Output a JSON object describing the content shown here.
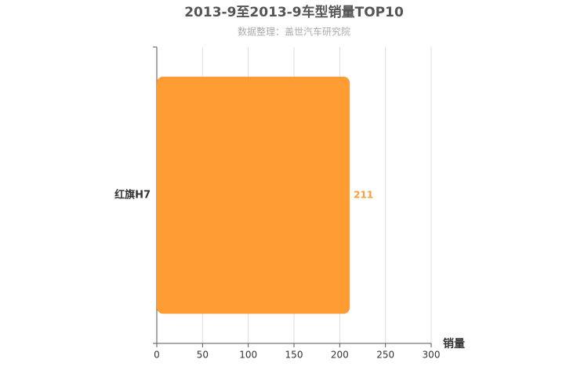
{
  "chart_data": {
    "type": "bar",
    "orientation": "horizontal",
    "title": "2013-9至2013-9车型销量TOP10",
    "subtitle": "数据整理：盖世汽车研究院",
    "x_label": "销量",
    "categories": [
      "红旗H7"
    ],
    "values": [
      211
    ],
    "color": "#ff9c33",
    "xlim": [
      0,
      300
    ],
    "xticks": [
      0,
      50,
      100,
      150,
      200,
      250,
      300
    ],
    "grid": true
  }
}
